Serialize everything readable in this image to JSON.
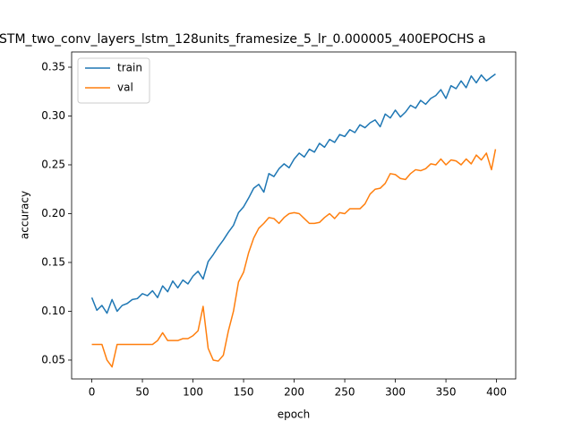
{
  "chart_data": {
    "type": "line",
    "title": "STM_two_conv_layers_lstm_128units_framesize_5_lr_0.000005_400EPOCHS a",
    "xlabel": "epoch",
    "ylabel": "accuracy",
    "x": [
      0,
      5,
      10,
      15,
      20,
      25,
      30,
      35,
      40,
      45,
      50,
      55,
      60,
      65,
      70,
      75,
      80,
      85,
      90,
      95,
      100,
      105,
      110,
      115,
      120,
      125,
      130,
      135,
      140,
      145,
      150,
      155,
      160,
      165,
      170,
      175,
      180,
      185,
      190,
      195,
      200,
      205,
      210,
      215,
      220,
      225,
      230,
      235,
      240,
      245,
      250,
      255,
      260,
      265,
      270,
      275,
      280,
      285,
      290,
      295,
      300,
      305,
      310,
      315,
      320,
      325,
      330,
      335,
      340,
      345,
      350,
      355,
      360,
      365,
      370,
      375,
      380,
      385,
      390,
      395,
      399
    ],
    "series": [
      {
        "name": "train",
        "color": "#1f77b4",
        "values": [
          0.114,
          0.101,
          0.106,
          0.098,
          0.112,
          0.1,
          0.106,
          0.108,
          0.112,
          0.113,
          0.118,
          0.116,
          0.121,
          0.114,
          0.126,
          0.12,
          0.131,
          0.124,
          0.132,
          0.128,
          0.136,
          0.141,
          0.133,
          0.151,
          0.158,
          0.166,
          0.173,
          0.181,
          0.188,
          0.201,
          0.207,
          0.216,
          0.226,
          0.23,
          0.222,
          0.241,
          0.238,
          0.246,
          0.251,
          0.247,
          0.256,
          0.262,
          0.258,
          0.266,
          0.263,
          0.272,
          0.268,
          0.276,
          0.273,
          0.281,
          0.279,
          0.286,
          0.283,
          0.291,
          0.288,
          0.293,
          0.296,
          0.289,
          0.302,
          0.298,
          0.306,
          0.299,
          0.304,
          0.311,
          0.308,
          0.316,
          0.312,
          0.318,
          0.321,
          0.327,
          0.318,
          0.331,
          0.328,
          0.336,
          0.329,
          0.341,
          0.334,
          0.342,
          0.336,
          0.34,
          0.343
        ]
      },
      {
        "name": "val",
        "color": "#ff7f0e",
        "values": [
          0.066,
          0.066,
          0.066,
          0.05,
          0.043,
          0.066,
          0.066,
          0.066,
          0.066,
          0.066,
          0.066,
          0.066,
          0.066,
          0.07,
          0.078,
          0.07,
          0.07,
          0.07,
          0.072,
          0.072,
          0.075,
          0.08,
          0.105,
          0.062,
          0.05,
          0.049,
          0.055,
          0.08,
          0.1,
          0.13,
          0.14,
          0.16,
          0.175,
          0.185,
          0.19,
          0.196,
          0.195,
          0.19,
          0.196,
          0.2,
          0.201,
          0.2,
          0.195,
          0.19,
          0.19,
          0.191,
          0.196,
          0.2,
          0.195,
          0.201,
          0.2,
          0.205,
          0.205,
          0.205,
          0.21,
          0.22,
          0.225,
          0.226,
          0.231,
          0.241,
          0.24,
          0.236,
          0.235,
          0.241,
          0.245,
          0.244,
          0.246,
          0.251,
          0.25,
          0.256,
          0.25,
          0.255,
          0.254,
          0.25,
          0.256,
          0.251,
          0.26,
          0.255,
          0.262,
          0.245,
          0.266
        ]
      }
    ],
    "xlim": [
      -19.95,
      418.95
    ],
    "xticks": [
      0,
      50,
      100,
      150,
      200,
      250,
      300,
      350,
      400
    ],
    "ylim": [
      0.0307,
      0.3656
    ],
    "yticks": [
      0.05,
      {
        "value": 0.1,
        "label": "0.10"
      },
      0.15,
      {
        "value": 0.2,
        "label": "0.20"
      },
      0.25,
      {
        "value": 0.3,
        "label": "0.30"
      },
      0.35
    ],
    "legend": "upper left"
  }
}
